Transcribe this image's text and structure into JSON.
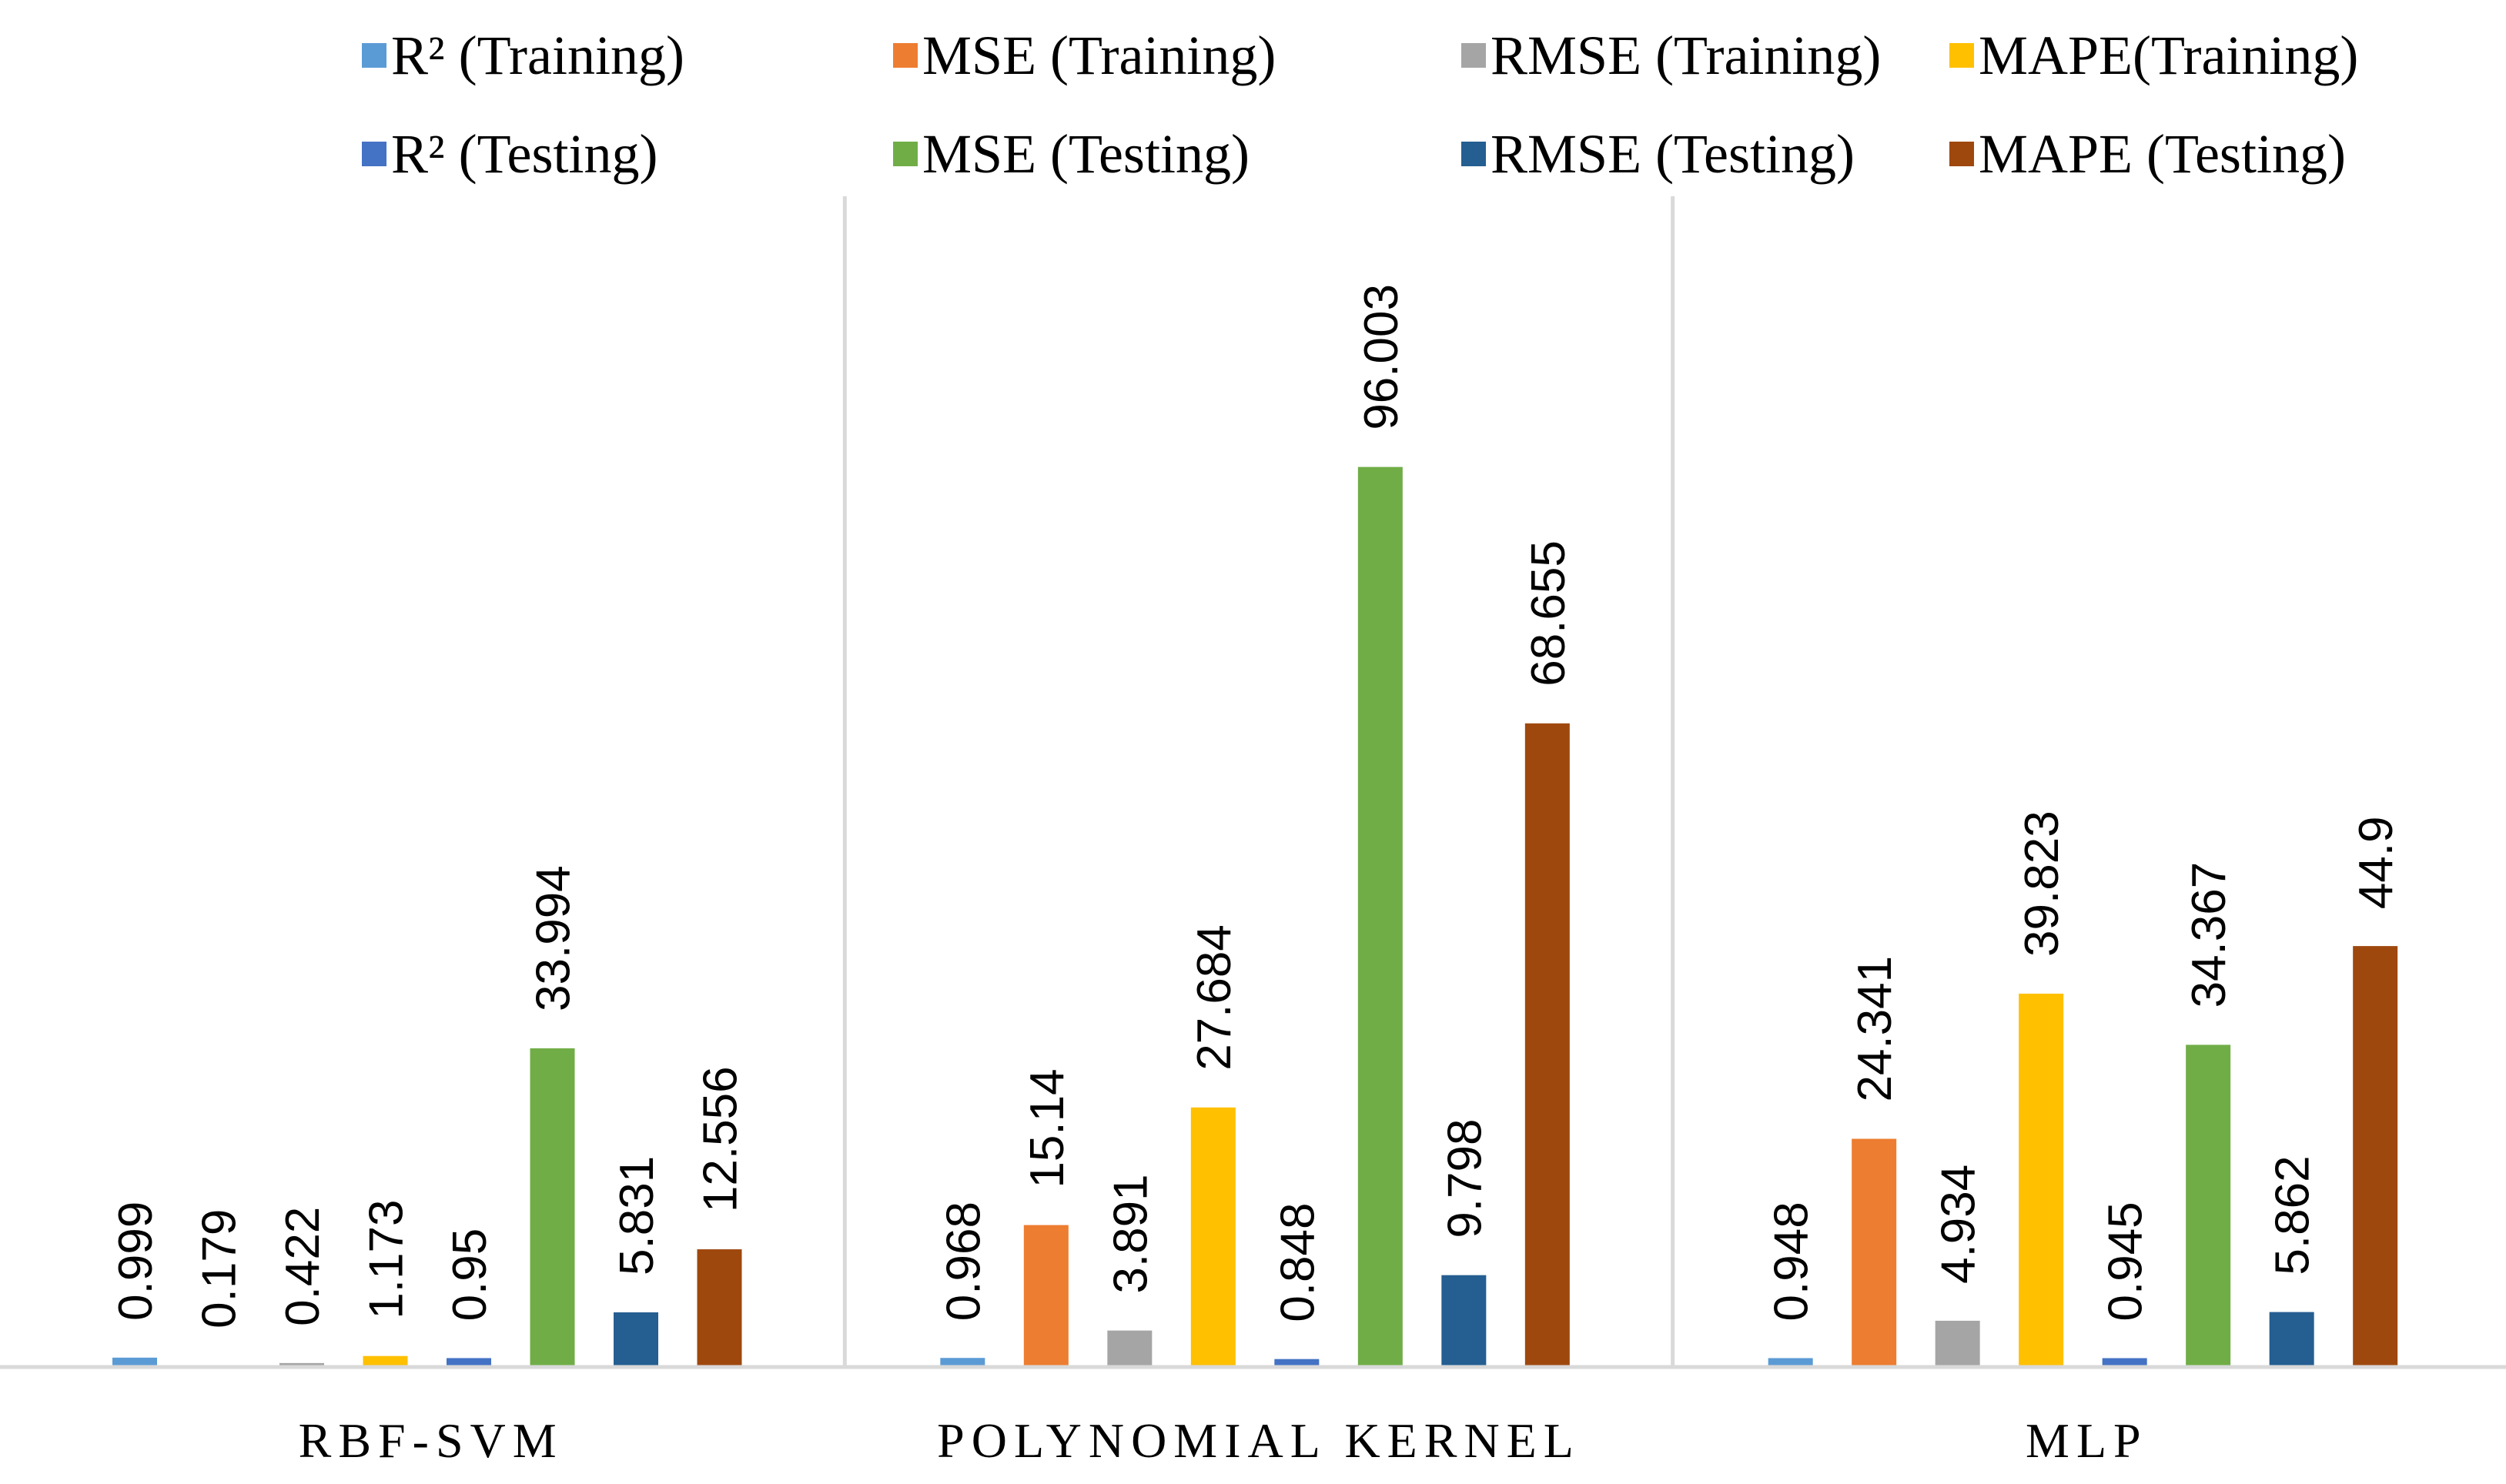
{
  "chart_data": {
    "type": "bar",
    "title": "",
    "xlabel": "",
    "ylabel": "",
    "ylim": [
      0,
      100
    ],
    "grid": false,
    "legend_position": "top",
    "categories": [
      "RBF-SVM",
      "POLYNOMIAL KERNEL",
      "MLP"
    ],
    "series": [
      {
        "name": "R² (Training)",
        "color": "#5B9BD5",
        "values": [
          0.999,
          0.968,
          0.948
        ],
        "labels": [
          "0.999",
          "0.968",
          "0.948"
        ]
      },
      {
        "name": "MSE (Training)",
        "color": "#ED7D31",
        "values": [
          0.179,
          15.14,
          24.341
        ],
        "labels": [
          "0.179",
          "15.14",
          "24.341"
        ]
      },
      {
        "name": "RMSE (Training)",
        "color": "#A5A5A5",
        "values": [
          0.422,
          3.891,
          4.934
        ],
        "labels": [
          "0.422",
          "3.891",
          "4.934"
        ]
      },
      {
        "name": "MAPE(Training)",
        "color": "#FFC000",
        "values": [
          1.173,
          27.684,
          39.823
        ],
        "labels": [
          "1.173",
          "27.684",
          "39.823"
        ]
      },
      {
        "name": "R² (Testing)",
        "color": "#4472C4",
        "values": [
          0.95,
          0.848,
          0.945
        ],
        "labels": [
          "0.95",
          "0.848",
          "0.945"
        ]
      },
      {
        "name": "MSE (Testing)",
        "color": "#70AD47",
        "values": [
          33.994,
          96.003,
          34.367
        ],
        "labels": [
          "33.994",
          "96.003",
          "34.367"
        ]
      },
      {
        "name": "RMSE (Testing)",
        "color": "#255E91",
        "values": [
          5.831,
          9.798,
          5.862
        ],
        "labels": [
          "5.831",
          "9.798",
          "5.862"
        ]
      },
      {
        "name": "MAPE (Testing)",
        "color": "#9E480E",
        "values": [
          12.556,
          68.655,
          44.9
        ],
        "labels": [
          "12.556",
          "68.655",
          "44.9"
        ]
      }
    ]
  }
}
